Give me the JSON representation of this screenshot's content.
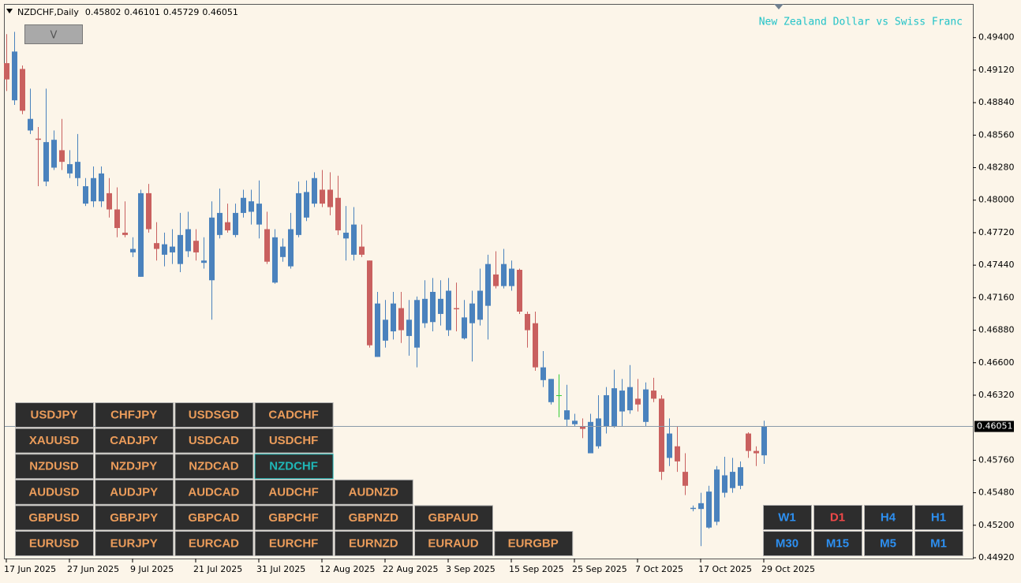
{
  "header": {
    "symbol": "NZDCHF,Daily"
  },
  "toggle_button": "V",
  "chart_data": {
    "type": "candlestick",
    "subtitle": "New Zealand Dollar vs Swiss Franc",
    "categories": [
      "17 Jun 2025",
      null,
      null,
      null,
      null,
      null,
      null,
      null,
      "27 Jun 2025",
      null,
      null,
      null,
      null,
      null,
      null,
      null,
      "9 Jul 2025",
      null,
      null,
      null,
      null,
      null,
      null,
      null,
      "21 Jul 2025",
      null,
      null,
      null,
      null,
      null,
      null,
      null,
      "31 Jul 2025",
      null,
      null,
      null,
      null,
      null,
      null,
      null,
      "12 Aug 2025",
      null,
      null,
      null,
      null,
      null,
      null,
      null,
      "22 Aug 2025",
      null,
      null,
      null,
      null,
      null,
      null,
      null,
      "3 Sep 2025",
      null,
      null,
      null,
      null,
      null,
      null,
      null,
      "15 Sep 2025",
      null,
      null,
      null,
      null,
      null,
      null,
      null,
      "25 Sep 2025",
      null,
      null,
      null,
      null,
      null,
      null,
      null,
      "7 Oct 2025",
      null,
      null,
      null,
      null,
      null,
      null,
      null,
      "17 Oct 2025",
      null,
      null,
      null,
      null,
      null,
      null,
      null,
      "29 Oct 2025"
    ],
    "open": [
      0.4918,
      0.4886,
      0.4913,
      0.486,
      0.4853,
      0.4816,
      0.4828,
      0.4843,
      0.4823,
      0.4819,
      0.4797,
      0.4799,
      0.4799,
      0.4806,
      0.4792,
      0.4772,
      0.4755,
      0.4734,
      0.4806,
      0.4763,
      0.4753,
      0.4755,
      0.4745,
      0.4756,
      0.4765,
      0.4746,
      0.4731,
      0.477,
      0.4781,
      0.477,
      0.4789,
      0.479,
      0.4779,
      0.4775,
      0.4729,
      0.4751,
      0.4743,
      0.477,
      0.4785,
      0.4797,
      0.4809,
      0.4809,
      0.4802,
      0.4767,
      0.4753,
      0.476,
      0.4748,
      0.4665,
      0.4679,
      0.4687,
      0.4707,
      0.4683,
      0.4673,
      0.4694,
      0.4695,
      0.4702,
      0.4688,
      0.4707,
      0.4681,
      0.4694,
      0.4697,
      0.4709,
      0.4736,
      0.4726,
      0.4726,
      0.474,
      0.4702,
      0.4694,
      0.4645,
      0.4626,
      0.4632,
      0.4611,
      0.4607,
      0.4605,
      0.4582,
      0.4588,
      0.4605,
      0.4605,
      0.4618,
      0.4619,
      0.4629,
      0.4609,
      0.4636,
      0.4629,
      0.4578,
      0.4588,
      0.4566,
      0.4534,
      0.4534,
      0.4518,
      0.4523,
      0.4548,
      0.4552,
      0.4554,
      0.4599,
      0.4584,
      0.45802
    ],
    "high": [
      0.4943,
      0.4945,
      0.4916,
      0.4896,
      0.4863,
      0.4896,
      0.486,
      0.487,
      0.4843,
      0.4857,
      0.4819,
      0.4829,
      0.4829,
      0.4819,
      0.4811,
      0.4799,
      0.4768,
      0.4809,
      0.4814,
      0.4781,
      0.4772,
      0.4775,
      0.4789,
      0.479,
      0.4775,
      0.4768,
      0.4799,
      0.481,
      0.4797,
      0.4797,
      0.4809,
      0.4809,
      0.4817,
      0.479,
      0.4775,
      0.4767,
      0.4789,
      0.4816,
      0.4817,
      0.4824,
      0.4826,
      0.4824,
      0.4821,
      0.4795,
      0.4794,
      0.4779,
      0.4748,
      0.4721,
      0.4714,
      0.4721,
      0.4721,
      0.4714,
      0.4717,
      0.4731,
      0.4733,
      0.4731,
      0.4733,
      0.4729,
      0.4714,
      0.4722,
      0.4741,
      0.4753,
      0.4756,
      0.4758,
      0.4748,
      0.4741,
      0.4704,
      0.4704,
      0.467,
      0.4646,
      0.465,
      0.4641,
      0.4616,
      0.4612,
      0.4616,
      0.4632,
      0.4639,
      0.4654,
      0.4646,
      0.4658,
      0.4646,
      0.4643,
      0.4647,
      0.4632,
      0.4612,
      0.4605,
      0.4582,
      0.4537,
      0.4548,
      0.4554,
      0.4571,
      0.4579,
      0.4578,
      0.4575,
      0.46,
      0.4588,
      0.46101
    ],
    "low": [
      0.4894,
      0.4882,
      0.4874,
      0.4857,
      0.4812,
      0.4812,
      0.4826,
      0.4826,
      0.4819,
      0.4812,
      0.4795,
      0.4794,
      0.4794,
      0.4785,
      0.4768,
      0.4768,
      0.4751,
      0.4734,
      0.4772,
      0.4748,
      0.4743,
      0.4745,
      0.4738,
      0.4751,
      0.4748,
      0.4741,
      0.4697,
      0.4767,
      0.4772,
      0.4768,
      0.4785,
      0.4779,
      0.4767,
      0.4745,
      0.4728,
      0.4747,
      0.4741,
      0.4768,
      0.4782,
      0.4794,
      0.4794,
      0.4787,
      0.477,
      0.4748,
      0.4748,
      0.4751,
      0.4673,
      0.4665,
      0.4673,
      0.468,
      0.4677,
      0.4666,
      0.4656,
      0.469,
      0.4687,
      0.4692,
      0.4683,
      0.4687,
      0.468,
      0.4661,
      0.4692,
      0.468,
      0.4724,
      0.4724,
      0.4722,
      0.4702,
      0.4673,
      0.4653,
      0.4639,
      0.4624,
      0.4613,
      0.4605,
      0.4605,
      0.4595,
      0.4582,
      0.4586,
      0.4599,
      0.4604,
      0.4605,
      0.4616,
      0.4618,
      0.4605,
      0.4626,
      0.4559,
      0.4571,
      0.4566,
      0.4546,
      0.4532,
      0.4502,
      0.4517,
      0.452,
      0.4544,
      0.4548,
      0.4551,
      0.4578,
      0.4571,
      0.45729
    ],
    "close": [
      0.4904,
      0.4928,
      0.4877,
      0.487,
      0.4852,
      0.485,
      0.4852,
      0.4833,
      0.4831,
      0.4833,
      0.4812,
      0.4819,
      0.4823,
      0.4792,
      0.4776,
      0.477,
      0.4758,
      0.4806,
      0.4775,
      0.4758,
      0.4762,
      0.476,
      0.477,
      0.4775,
      0.4755,
      0.4748,
      0.4785,
      0.4789,
      0.4774,
      0.4789,
      0.4802,
      0.4799,
      0.4797,
      0.4747,
      0.4768,
      0.476,
      0.4775,
      0.4806,
      0.4807,
      0.4819,
      0.4797,
      0.4794,
      0.4774,
      0.4772,
      0.4779,
      0.4753,
      0.4675,
      0.4711,
      0.4697,
      0.4711,
      0.4688,
      0.4697,
      0.4714,
      0.4715,
      0.4721,
      0.4715,
      0.4722,
      0.4706,
      0.4699,
      0.4711,
      0.4722,
      0.4745,
      0.4726,
      0.4745,
      0.4741,
      0.4704,
      0.4688,
      0.4656,
      0.4656,
      0.4646,
      0.4632,
      0.4619,
      0.461,
      0.4603,
      0.4609,
      0.4612,
      0.4632,
      0.4638,
      0.4636,
      0.4639,
      0.4624,
      0.4637,
      0.4629,
      0.4566,
      0.4599,
      0.4575,
      0.4554,
      0.4535,
      0.4539,
      0.4549,
      0.4568,
      0.4563,
      0.4566,
      0.457,
      0.4584,
      0.4582,
      0.46051
    ],
    "up_color": "#4a82bd",
    "down_color": "#c9605f",
    "doji_color": "#33cc33",
    "ylim": [
      0.4492,
      0.4969
    ],
    "yticks": [
      {
        "value": 0.494,
        "label": "0.49400"
      },
      {
        "value": 0.4912,
        "label": "0.49120"
      },
      {
        "value": 0.4884,
        "label": "0.48840"
      },
      {
        "value": 0.4856,
        "label": "0.48560"
      },
      {
        "value": 0.4828,
        "label": "0.48280"
      },
      {
        "value": 0.48,
        "label": "0.48000"
      },
      {
        "value": 0.4772,
        "label": "0.47720"
      },
      {
        "value": 0.4744,
        "label": "0.47440"
      },
      {
        "value": 0.4716,
        "label": "0.47160"
      },
      {
        "value": 0.4688,
        "label": "0.46880"
      },
      {
        "value": 0.466,
        "label": "0.46600"
      },
      {
        "value": 0.4632,
        "label": "0.46320"
      },
      {
        "value": 0.4576,
        "label": "0.45760"
      },
      {
        "value": 0.4548,
        "label": "0.45480"
      },
      {
        "value": 0.452,
        "label": "0.45200"
      },
      {
        "value": 0.4492,
        "label": "0.44920"
      }
    ],
    "last_price": {
      "value": 0.46051,
      "label": "0.46051"
    }
  },
  "symbol_buttons": [
    [
      {
        "label": "USDJPY"
      },
      {
        "label": "CHFJPY"
      },
      {
        "label": "USDSGD"
      },
      {
        "label": "CADCHF"
      }
    ],
    [
      {
        "label": "XAUUSD"
      },
      {
        "label": "CADJPY"
      },
      {
        "label": "USDCAD"
      },
      {
        "label": "USDCHF"
      }
    ],
    [
      {
        "label": "NZDUSD"
      },
      {
        "label": "NZDJPY"
      },
      {
        "label": "NZDCAD"
      },
      {
        "label": "NZDCHF",
        "active": true
      }
    ],
    [
      {
        "label": "AUDUSD"
      },
      {
        "label": "AUDJPY"
      },
      {
        "label": "AUDCAD"
      },
      {
        "label": "AUDCHF"
      },
      {
        "label": "AUDNZD"
      }
    ],
    [
      {
        "label": "GBPUSD"
      },
      {
        "label": "GBPJPY"
      },
      {
        "label": "GBPCAD"
      },
      {
        "label": "GBPCHF"
      },
      {
        "label": "GBPNZD"
      },
      {
        "label": "GBPAUD"
      }
    ],
    [
      {
        "label": "EURUSD"
      },
      {
        "label": "EURJPY"
      },
      {
        "label": "EURCAD"
      },
      {
        "label": "EURCHF"
      },
      {
        "label": "EURNZD"
      },
      {
        "label": "EURAUD"
      },
      {
        "label": "EURGBP"
      }
    ]
  ],
  "timeframe_buttons": [
    [
      {
        "label": "W1"
      },
      {
        "label": "D1",
        "active": true
      },
      {
        "label": "H4"
      },
      {
        "label": "H1"
      }
    ],
    [
      {
        "label": "M30"
      },
      {
        "label": "M15"
      },
      {
        "label": "M5"
      },
      {
        "label": "M1"
      }
    ]
  ]
}
